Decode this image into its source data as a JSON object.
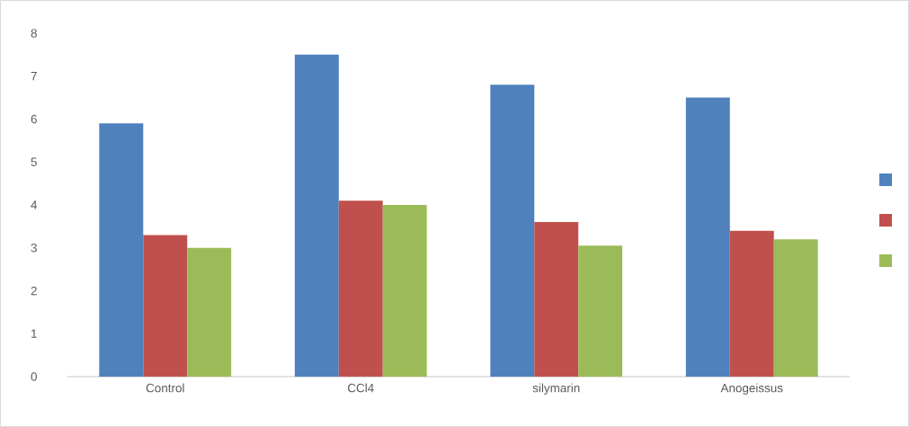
{
  "chart_data": {
    "type": "bar",
    "categories": [
      "Control",
      "CCl4",
      "silymarin",
      "Anogeissus"
    ],
    "series": [
      {
        "color": "#4f81bd",
        "values": [
          5.9,
          7.5,
          6.8,
          6.5
        ]
      },
      {
        "color": "#c0504d",
        "values": [
          3.3,
          4.1,
          3.6,
          3.4
        ]
      },
      {
        "color": "#9bbb59",
        "values": [
          3.0,
          4.0,
          3.05,
          3.2
        ]
      }
    ],
    "ylim": [
      0,
      8
    ],
    "yticks": [
      0,
      1,
      2,
      3,
      4,
      5,
      6,
      7,
      8
    ],
    "grid": false
  }
}
